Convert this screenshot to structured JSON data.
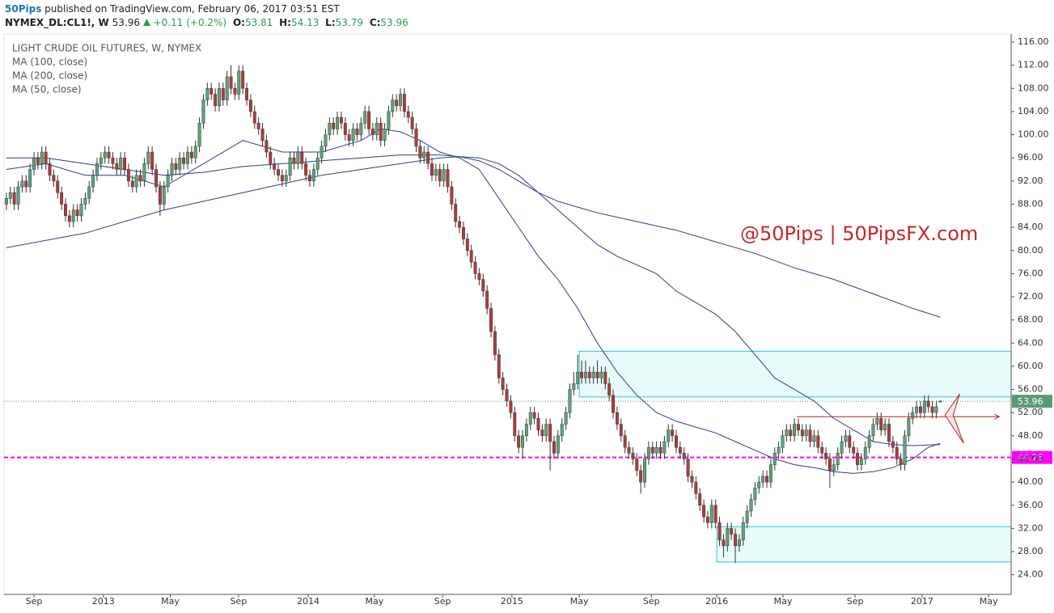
{
  "header": {
    "author": "50Pips",
    "published": "published on TradingView.com, February 06, 2017 03:51 EST",
    "symbol": "NYMEX_DL:CL1!, W",
    "price": "53.96",
    "change": "+0.11 (+0.2%)",
    "ohlc": [
      {
        "label": "O:",
        "value": "53.81"
      },
      {
        "label": "H:",
        "value": "54.13"
      },
      {
        "label": "L:",
        "value": "53.79"
      },
      {
        "label": "C:",
        "value": "53.96"
      }
    ]
  },
  "chart_data": {
    "type": "candlestick",
    "title": "LIGHT CRUDE OIL FUTURES, W, NYMEX",
    "watermark": "@50Pips | 50PipsFX.com",
    "up_color": "#5aa67a",
    "down_color": "#b33a3a",
    "wick_color": "#333333",
    "grid": false,
    "xlim": [
      -0.6,
      255
    ],
    "ylim": [
      20.6,
      117.4
    ],
    "xticks": [
      {
        "value": 7,
        "label": "Sep"
      },
      {
        "value": 24.6,
        "label": "2013"
      },
      {
        "value": 41.6,
        "label": "May"
      },
      {
        "value": 58.9,
        "label": "Sep"
      },
      {
        "value": 76.6,
        "label": "2014"
      },
      {
        "value": 93.4,
        "label": "May"
      },
      {
        "value": 110.7,
        "label": "Sep"
      },
      {
        "value": 128.3,
        "label": "2015"
      },
      {
        "value": 145.4,
        "label": "May"
      },
      {
        "value": 163.7,
        "label": "Sep"
      },
      {
        "value": 180.3,
        "label": "2016"
      },
      {
        "value": 197.1,
        "label": "May"
      },
      {
        "value": 215.4,
        "label": "Sep"
      },
      {
        "value": 232.4,
        "label": "2017"
      },
      {
        "value": 249.3,
        "label": "May"
      }
    ],
    "yticks": [
      {
        "value": 24,
        "label": "24.00"
      },
      {
        "value": 28,
        "label": "28.00"
      },
      {
        "value": 32,
        "label": "32.00"
      },
      {
        "value": 36,
        "label": "36.00"
      },
      {
        "value": 40,
        "label": "40.00"
      },
      {
        "value": 44,
        "label": "44.00"
      },
      {
        "value": 48,
        "label": "48.00"
      },
      {
        "value": 52,
        "label": "52.00"
      },
      {
        "value": 56,
        "label": "56.00"
      },
      {
        "value": 60,
        "label": "60.00"
      },
      {
        "value": 64,
        "label": "64.00"
      },
      {
        "value": 68,
        "label": "68.00"
      },
      {
        "value": 72,
        "label": "72.00"
      },
      {
        "value": 76,
        "label": "76.00"
      },
      {
        "value": 80,
        "label": "80.00"
      },
      {
        "value": 84,
        "label": "84.00"
      },
      {
        "value": 88,
        "label": "88.00"
      },
      {
        "value": 92,
        "label": "92.00"
      },
      {
        "value": 96,
        "label": "96.00"
      },
      {
        "value": 100,
        "label": "100.00"
      },
      {
        "value": 104,
        "label": "104.00"
      },
      {
        "value": 108,
        "label": "108.00"
      },
      {
        "value": 112,
        "label": "112.00"
      },
      {
        "value": 116,
        "label": "116.00"
      }
    ],
    "x": [
      0,
      1,
      2,
      3,
      4,
      5,
      6,
      7,
      8,
      9,
      10,
      11,
      12,
      13,
      14,
      15,
      16,
      17,
      18,
      19,
      20,
      21,
      22,
      23,
      24,
      25,
      26,
      27,
      28,
      29,
      30,
      31,
      32,
      33,
      34,
      35,
      36,
      37,
      38,
      39,
      40,
      41,
      42,
      43,
      44,
      45,
      46,
      47,
      48,
      49,
      50,
      51,
      52,
      53,
      54,
      55,
      56,
      57,
      58,
      59,
      60,
      61,
      62,
      63,
      64,
      65,
      66,
      67,
      68,
      69,
      70,
      71,
      72,
      73,
      74,
      75,
      76,
      77,
      78,
      79,
      80,
      81,
      82,
      83,
      84,
      85,
      86,
      87,
      88,
      89,
      90,
      91,
      92,
      93,
      94,
      95,
      96,
      97,
      98,
      99,
      100,
      101,
      102,
      103,
      104,
      105,
      106,
      107,
      108,
      109,
      110,
      111,
      112,
      113,
      114,
      115,
      116,
      117,
      118,
      119,
      120,
      121,
      122,
      123,
      124,
      125,
      126,
      127,
      128,
      129,
      130,
      131,
      132,
      133,
      134,
      135,
      136,
      137,
      138,
      139,
      140,
      141,
      142,
      143,
      144,
      145,
      146,
      147,
      148,
      149,
      150,
      151,
      152,
      153,
      154,
      155,
      156,
      157,
      158,
      159,
      160,
      161,
      162,
      163,
      164,
      165,
      166,
      167,
      168,
      169,
      170,
      171,
      172,
      173,
      174,
      175,
      176,
      177,
      178,
      179,
      180,
      181,
      182,
      183,
      184,
      185,
      186,
      187,
      188,
      189,
      190,
      191,
      192,
      193,
      194,
      195,
      196,
      197,
      198,
      199,
      200,
      201,
      202,
      203,
      204,
      205,
      206,
      207,
      208,
      209,
      210,
      211,
      212,
      213,
      214,
      215,
      216,
      217,
      218,
      219,
      220,
      221,
      222,
      223,
      224,
      225,
      226,
      227,
      228,
      229,
      230,
      231,
      232,
      233,
      234,
      235,
      236,
      237
    ],
    "open": [
      88,
      89,
      90,
      88,
      91,
      92,
      91,
      94,
      96,
      95,
      97,
      95,
      93,
      92,
      90,
      88,
      86,
      85,
      87,
      86,
      88,
      89,
      91,
      93,
      95,
      96,
      97,
      96,
      95,
      94,
      96,
      94,
      92,
      91,
      93,
      92,
      95,
      97,
      94,
      91,
      88,
      91,
      93,
      95,
      94,
      96,
      95,
      97,
      96,
      98,
      102,
      106,
      108,
      107,
      105,
      108,
      106,
      110,
      108,
      107,
      111,
      108,
      106,
      104,
      102,
      101,
      99,
      97,
      95,
      94,
      93,
      92,
      93,
      96,
      95,
      97,
      95,
      93,
      92,
      94,
      96,
      98,
      100,
      102,
      101,
      103,
      102,
      100,
      99,
      101,
      100,
      102,
      104,
      101,
      100,
      102,
      99,
      101,
      104,
      106,
      105,
      107,
      104,
      103,
      101,
      98,
      96,
      97,
      95,
      93,
      94,
      92,
      94,
      91,
      88,
      85,
      84,
      82,
      80,
      78,
      76,
      75,
      73,
      70,
      66,
      62,
      58,
      56,
      54,
      52,
      48,
      46,
      48,
      50,
      52,
      51,
      49,
      48,
      50,
      47,
      45,
      48,
      50,
      52,
      56,
      57,
      59,
      58,
      59,
      58,
      59,
      58,
      59,
      57,
      55,
      52,
      50,
      48,
      46,
      45,
      44,
      42,
      40,
      44,
      46,
      45,
      46,
      45,
      47,
      49,
      48,
      46,
      45,
      44,
      41,
      40,
      38,
      36,
      34,
      33,
      36,
      33,
      30,
      29,
      32,
      31,
      29,
      30,
      33,
      35,
      37,
      39,
      40,
      41,
      40,
      43,
      45,
      46,
      48,
      49,
      48,
      50,
      49,
      48,
      49,
      47,
      48,
      46,
      45,
      44,
      42,
      43,
      45,
      47,
      48,
      46,
      45,
      43,
      44,
      46,
      48,
      50,
      51,
      49,
      50,
      47,
      46,
      44,
      43,
      48,
      51,
      52,
      53,
      52,
      54,
      53,
      52,
      53.81
    ],
    "high": [
      90,
      91,
      91,
      92,
      93,
      93,
      95,
      97,
      97,
      98,
      98,
      96,
      94,
      93,
      91,
      89,
      87,
      88,
      88,
      89,
      90,
      92,
      94,
      96,
      97,
      98,
      98,
      97,
      96,
      97,
      97,
      95,
      93,
      94,
      94,
      96,
      98,
      98,
      95,
      92,
      92,
      94,
      96,
      96,
      97,
      97,
      98,
      98,
      99,
      103,
      107,
      109,
      109,
      108,
      109,
      109,
      111,
      112,
      109,
      112,
      112,
      109,
      107,
      105,
      103,
      102,
      100,
      98,
      96,
      95,
      94,
      94,
      97,
      97,
      98,
      98,
      96,
      94,
      95,
      97,
      99,
      101,
      103,
      103,
      104,
      104,
      103,
      101,
      102,
      102,
      103,
      105,
      105,
      102,
      103,
      103,
      102,
      105,
      107,
      107,
      108,
      108,
      105,
      104,
      102,
      99,
      98,
      98,
      96,
      95,
      95,
      95,
      95,
      92,
      89,
      86,
      85,
      83,
      81,
      79,
      77,
      76,
      74,
      71,
      67,
      63,
      59,
      57,
      55,
      53,
      49,
      49,
      51,
      53,
      53,
      52,
      50,
      51,
      51,
      48,
      49,
      51,
      53,
      57,
      59,
      62,
      61,
      61,
      60,
      60,
      61,
      60,
      60,
      58,
      56,
      53,
      51,
      49,
      47,
      46,
      45,
      43,
      45,
      47,
      47,
      47,
      47,
      48,
      50,
      50,
      49,
      47,
      46,
      45,
      42,
      41,
      39,
      37,
      35,
      37,
      37,
      34,
      31,
      33,
      33,
      32,
      31,
      34,
      36,
      38,
      40,
      41,
      42,
      42,
      44,
      46,
      47,
      49,
      50,
      50,
      51,
      51,
      50,
      50,
      50,
      49,
      49,
      47,
      46,
      45,
      44,
      46,
      48,
      49,
      49,
      47,
      46,
      45,
      47,
      49,
      51,
      52,
      52,
      51,
      51,
      48,
      47,
      45,
      49,
      52,
      53,
      54,
      54,
      55,
      55,
      54,
      54,
      54.13
    ],
    "low": [
      87,
      88,
      87,
      87,
      90,
      90,
      90,
      93,
      94,
      94,
      94,
      92,
      91,
      89,
      87,
      85,
      84,
      84,
      85,
      85,
      87,
      88,
      90,
      92,
      94,
      95,
      95,
      94,
      93,
      93,
      93,
      91,
      90,
      90,
      91,
      91,
      94,
      93,
      90,
      86,
      87,
      90,
      92,
      93,
      93,
      94,
      94,
      95,
      95,
      97,
      101,
      105,
      106,
      104,
      104,
      105,
      105,
      107,
      106,
      106,
      107,
      105,
      103,
      101,
      100,
      98,
      96,
      94,
      93,
      92,
      91,
      91,
      92,
      94,
      94,
      94,
      92,
      91,
      91,
      93,
      95,
      97,
      99,
      100,
      100,
      101,
      99,
      98,
      98,
      99,
      99,
      101,
      100,
      99,
      99,
      98,
      98,
      100,
      103,
      104,
      104,
      103,
      102,
      100,
      97,
      95,
      95,
      94,
      92,
      92,
      91,
      91,
      90,
      87,
      84,
      83,
      81,
      79,
      77,
      75,
      74,
      72,
      69,
      65,
      61,
      57,
      55,
      53,
      51,
      47,
      45,
      44,
      47,
      49,
      50,
      48,
      47,
      47,
      42,
      44,
      44,
      47,
      49,
      51,
      55,
      56,
      57,
      57,
      57,
      57,
      57,
      57,
      56,
      54,
      51,
      49,
      47,
      45,
      44,
      43,
      41,
      38,
      39,
      43,
      44,
      44,
      44,
      44,
      46,
      47,
      45,
      44,
      43,
      40,
      39,
      37,
      35,
      33,
      32,
      32,
      32,
      29,
      27,
      28,
      30,
      26,
      28,
      29,
      32,
      34,
      36,
      38,
      39,
      39,
      39,
      42,
      44,
      45,
      47,
      47,
      47,
      48,
      47,
      47,
      46,
      46,
      45,
      44,
      43,
      39,
      41,
      42,
      44,
      46,
      45,
      44,
      42,
      42,
      43,
      45,
      47,
      49,
      48,
      48,
      46,
      45,
      43,
      42,
      42,
      47,
      50,
      51,
      51,
      51,
      52,
      51,
      51,
      53.79
    ],
    "close": [
      89,
      90,
      88,
      91,
      92,
      91,
      94,
      96,
      95,
      97,
      95,
      93,
      92,
      90,
      88,
      86,
      85,
      87,
      86,
      88,
      89,
      91,
      93,
      95,
      96,
      97,
      96,
      95,
      94,
      96,
      94,
      92,
      91,
      93,
      92,
      95,
      97,
      94,
      91,
      88,
      91,
      93,
      95,
      94,
      96,
      95,
      97,
      96,
      98,
      102,
      106,
      108,
      107,
      105,
      108,
      106,
      110,
      108,
      107,
      111,
      108,
      106,
      104,
      102,
      101,
      99,
      97,
      95,
      94,
      93,
      92,
      93,
      96,
      95,
      97,
      95,
      93,
      92,
      94,
      96,
      98,
      100,
      102,
      101,
      103,
      102,
      100,
      99,
      101,
      100,
      102,
      104,
      101,
      100,
      102,
      99,
      101,
      104,
      106,
      105,
      107,
      104,
      103,
      101,
      98,
      96,
      97,
      95,
      93,
      94,
      92,
      94,
      91,
      88,
      85,
      84,
      82,
      80,
      78,
      76,
      75,
      73,
      70,
      66,
      62,
      58,
      56,
      54,
      52,
      48,
      46,
      48,
      50,
      52,
      51,
      49,
      48,
      50,
      47,
      45,
      48,
      50,
      52,
      56,
      57,
      59,
      58,
      59,
      58,
      59,
      58,
      59,
      57,
      55,
      52,
      50,
      48,
      46,
      45,
      44,
      42,
      40,
      44,
      46,
      45,
      46,
      45,
      47,
      49,
      48,
      46,
      45,
      44,
      41,
      40,
      38,
      36,
      34,
      33,
      36,
      33,
      30,
      29,
      32,
      31,
      29,
      30,
      33,
      35,
      37,
      39,
      40,
      41,
      40,
      43,
      45,
      46,
      48,
      49,
      48,
      50,
      49,
      48,
      49,
      47,
      48,
      46,
      45,
      44,
      42,
      43,
      45,
      47,
      48,
      46,
      45,
      43,
      44,
      46,
      48,
      50,
      51,
      49,
      50,
      47,
      46,
      44,
      43,
      48,
      51,
      52,
      53,
      52,
      54,
      53,
      52,
      53,
      53.96
    ],
    "series": [
      {
        "name": "MA (100, close)",
        "color": "#2c3e8c",
        "x": [
          0,
          10,
          20,
          30,
          40,
          50,
          60,
          70,
          80,
          90,
          100,
          110,
          115,
          120,
          125,
          130,
          135,
          140,
          145,
          150,
          155,
          160,
          165,
          170,
          175,
          180,
          185,
          190,
          195,
          200,
          205,
          210,
          215,
          220,
          225,
          230,
          237
        ],
        "values": [
          96,
          96,
          95,
          94,
          93,
          93.5,
          94.5,
          95,
          95.5,
          96,
          96.5,
          96.5,
          96.2,
          96,
          95,
          93,
          90,
          87,
          84,
          81,
          79,
          77.5,
          76,
          73,
          71,
          69,
          66,
          62,
          58,
          56,
          54,
          51,
          49,
          47,
          46.5,
          46.3,
          46.5
        ]
      },
      {
        "name": "MA (200, close)",
        "color": "#2c3e8c",
        "x": [
          0,
          20,
          40,
          60,
          80,
          100,
          110,
          115,
          120,
          125,
          130,
          135,
          140,
          145,
          150,
          160,
          170,
          180,
          190,
          200,
          210,
          220,
          230,
          237
        ],
        "values": [
          80.5,
          83,
          87,
          90,
          93,
          95,
          96,
          96.2,
          95.5,
          94,
          92,
          90,
          88.5,
          87.5,
          86.5,
          85,
          83.5,
          81.5,
          79.5,
          77,
          75,
          72.5,
          70,
          68.5
        ]
      },
      {
        "name": "MA (50, close)",
        "color": "#2c3e8c",
        "x": [
          0,
          10,
          20,
          30,
          40,
          50,
          60,
          70,
          80,
          90,
          95,
          100,
          105,
          110,
          115,
          120,
          125,
          130,
          135,
          140,
          145,
          150,
          155,
          160,
          165,
          170,
          175,
          180,
          185,
          190,
          195,
          200,
          205,
          210,
          215,
          220,
          225,
          230,
          234,
          237
        ],
        "values": [
          94,
          95,
          93,
          93,
          91,
          95,
          99,
          97,
          97,
          99,
          101,
          100.5,
          99,
          97,
          96,
          94,
          89,
          84,
          79,
          75,
          70,
          64,
          59,
          55,
          52,
          50.5,
          49.5,
          48.5,
          47,
          45.5,
          44,
          43,
          42.5,
          41.8,
          41.5,
          41.8,
          42.5,
          44,
          46,
          46.7
        ]
      }
    ],
    "price_lines": [
      {
        "value": 53.96,
        "color": "#5a9a78",
        "style": "dotted"
      },
      {
        "value": 44.26,
        "color": "#ff00ff",
        "style": "dashed"
      }
    ],
    "zones": [
      {
        "x": [
          145.4,
          255
        ],
        "y": [
          54.7,
          62.6
        ]
      },
      {
        "x": [
          180.3,
          255
        ],
        "y": [
          26.2,
          32.3
        ]
      }
    ],
    "zone_color": "#22cccc",
    "resistance": {
      "x": [
        200.6,
        252
      ],
      "y": 51.3,
      "color": "#b22222"
    }
  }
}
